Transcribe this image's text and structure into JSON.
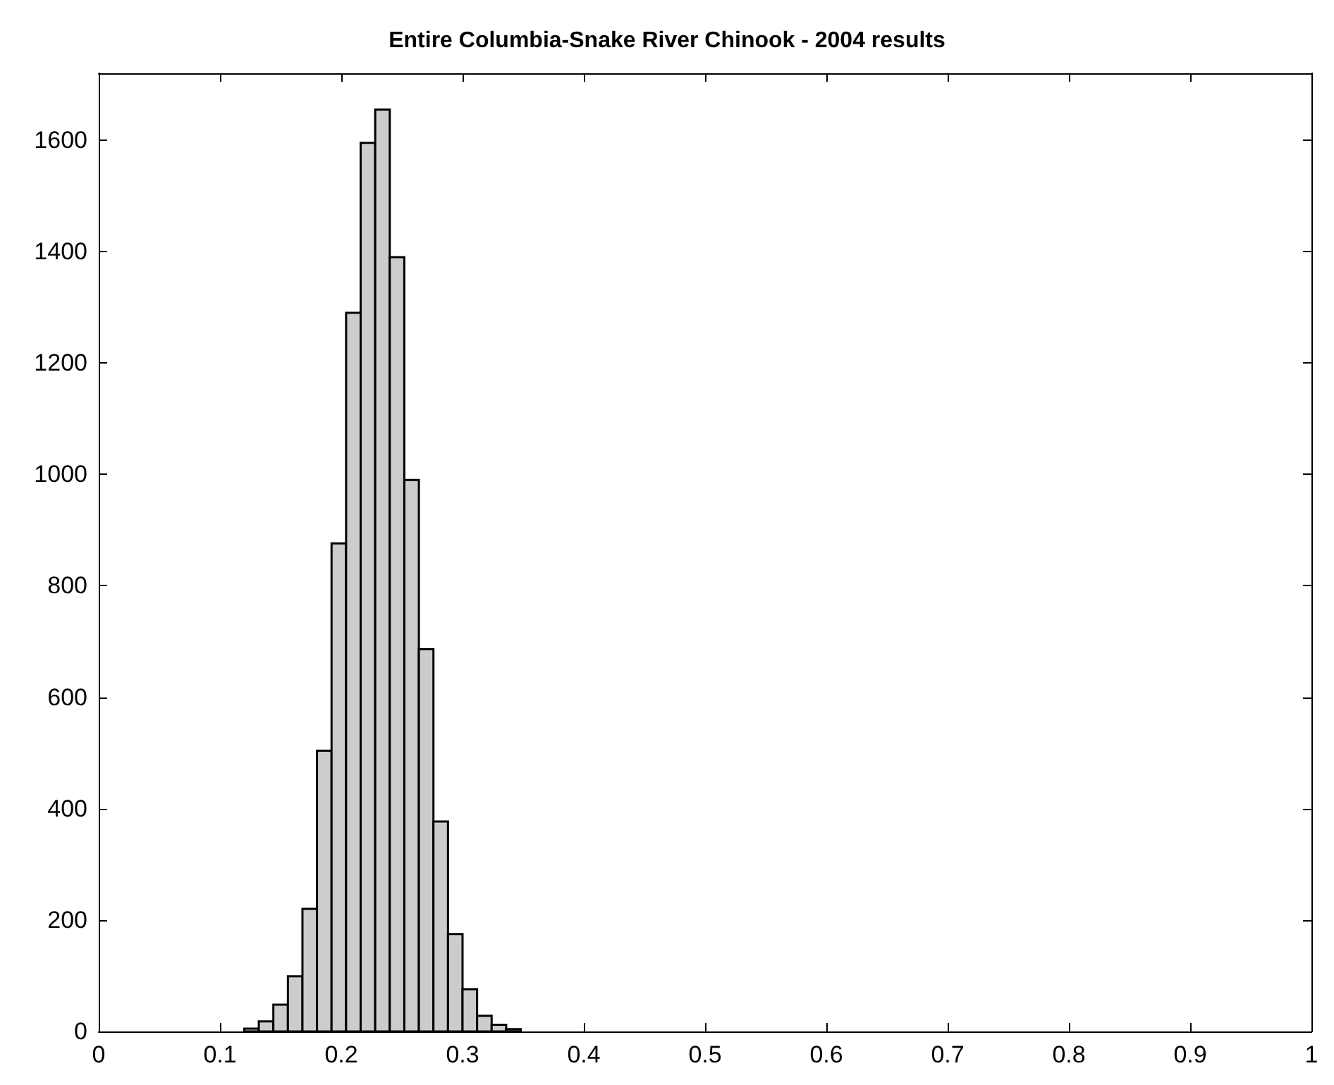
{
  "chart_data": {
    "type": "histogram",
    "title": "Entire Columbia-Snake River Chinook - 2004 results",
    "bins": [
      0.12,
      0.132,
      0.144,
      0.156,
      0.168,
      0.18,
      0.192,
      0.204,
      0.216,
      0.228,
      0.24,
      0.252,
      0.264,
      0.276,
      0.288,
      0.3,
      0.312,
      0.324,
      0.336,
      0.348
    ],
    "values": [
      5,
      18,
      48,
      99,
      220,
      504,
      876,
      1290,
      1595,
      1655,
      1390,
      990,
      686,
      377,
      175,
      76,
      28,
      12,
      4
    ],
    "color": "#cccccc",
    "xlim": [
      0,
      1
    ],
    "xticks": [
      0,
      0.1,
      0.2,
      0.3,
      0.4,
      0.5,
      0.6,
      0.7,
      0.8,
      0.9,
      1
    ],
    "ylim": [
      0,
      1720
    ],
    "yticks": [
      0,
      200,
      400,
      600,
      800,
      1000,
      1200,
      1400,
      1600
    ],
    "grid": false
  }
}
